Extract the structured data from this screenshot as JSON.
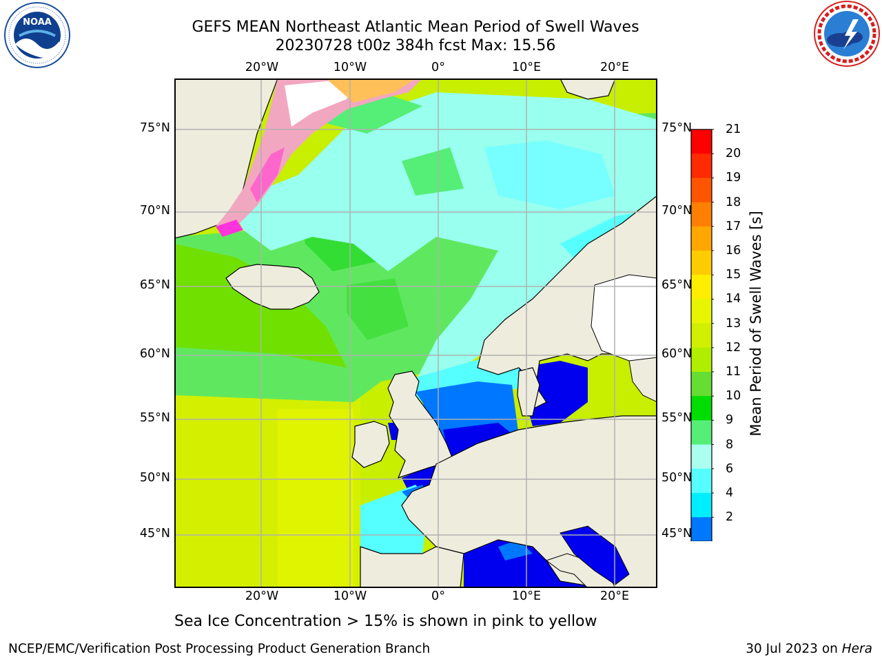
{
  "header": {
    "title_line1": "GEFS MEAN Northeast Atlantic Mean Period of Swell Waves",
    "title_line2": "20230728 t00z 384h fcst   Max: 15.56"
  },
  "logos": {
    "left": {
      "text": "NOAA",
      "ring_text": "NATIONAL OCEANIC AND ATMOSPHERIC ADMINISTRATION · U.S. DEPARTMENT OF COMMERCE"
    },
    "right": {
      "ring_text": "NATIONAL WEATHER SERVICE"
    }
  },
  "map": {
    "lon_labels": [
      "20°W",
      "10°W",
      "0°",
      "10°E",
      "20°E"
    ],
    "lat_labels": [
      "75°N",
      "70°N",
      "65°N",
      "60°N",
      "55°N",
      "50°N",
      "45°N"
    ],
    "colors": {
      "land": "#eeecdd",
      "ice_free": "#ffffff",
      "grid": "#b0b0b0"
    }
  },
  "colorbar": {
    "title": "Mean Period of Swell Waves [s]",
    "ticks": [
      "21",
      "20",
      "19",
      "18",
      "17",
      "16",
      "15",
      "14",
      "13",
      "12",
      "11",
      "10",
      "9",
      "8",
      "6",
      "4",
      "2"
    ],
    "colors_top_to_bottom": [
      "#ff0000",
      "#ff2a00",
      "#ff5500",
      "#ff7f00",
      "#ffa600",
      "#ffcc00",
      "#ffee00",
      "#e8f500",
      "#d0f000",
      "#b0ee00",
      "#66dd33",
      "#00dd00",
      "#55ee77",
      "#aaffee",
      "#55ffff",
      "#00eeff",
      "#0077ff"
    ],
    "under_color": "#0000ee"
  },
  "note": "Sea Ice Concentration > 15% is shown in pink to yellow",
  "footer": {
    "left": "NCEP/EMC/Verification Post Processing Product Generation Branch",
    "right_date": "30 Jul 2023 on ",
    "right_host": "Hera"
  }
}
